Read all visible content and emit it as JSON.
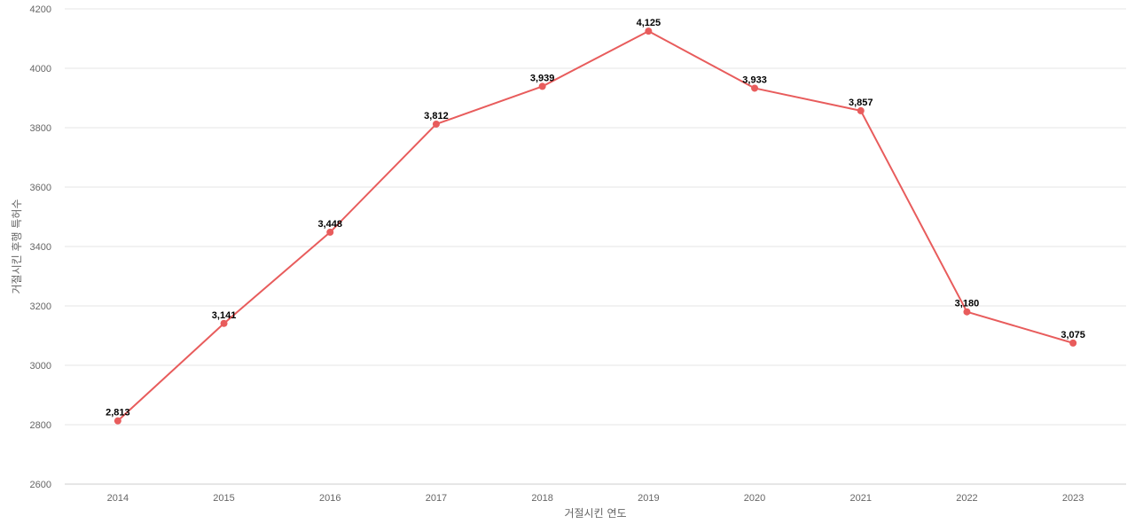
{
  "chart_data": {
    "type": "line",
    "title": "",
    "xlabel": "거절시킨 연도",
    "ylabel": "거절시킨 후행 특허수",
    "categories": [
      "2014",
      "2015",
      "2016",
      "2017",
      "2018",
      "2019",
      "2020",
      "2021",
      "2022",
      "2023"
    ],
    "series": [
      {
        "values": [
          2813,
          3141,
          3448,
          3812,
          3939,
          4125,
          3933,
          3857,
          3180,
          3075
        ],
        "labels": [
          "2,813",
          "3,141",
          "3,448",
          "3,812",
          "3,939",
          "4,125",
          "3,933",
          "3,857",
          "3,180",
          "3,075"
        ],
        "color": "#e85c5c"
      }
    ],
    "ylim": [
      2600,
      4200
    ],
    "yticks": [
      "2600",
      "2800",
      "3000",
      "3200",
      "3400",
      "3600",
      "3800",
      "4000",
      "4200"
    ],
    "grid": true,
    "legend": "none"
  }
}
